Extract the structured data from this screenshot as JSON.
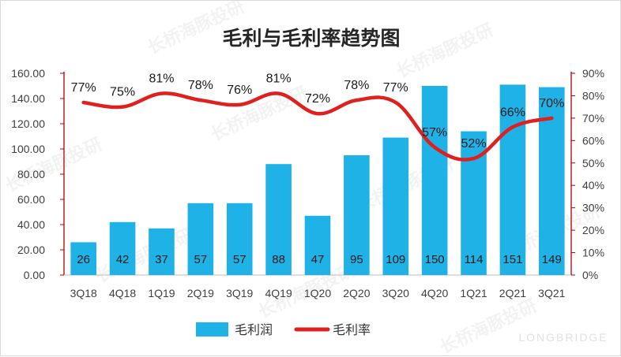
{
  "chart_data": {
    "type": "bar",
    "title": "毛利与毛利率趋势图",
    "categories": [
      "3Q18",
      "4Q18",
      "1Q19",
      "2Q19",
      "3Q19",
      "4Q19",
      "1Q20",
      "2Q20",
      "3Q20",
      "4Q20",
      "1Q21",
      "2Q21",
      "3Q21"
    ],
    "series": [
      {
        "name": "毛利润",
        "type": "bar",
        "axis": "left",
        "color": "#1fb2e6",
        "values": [
          26,
          42,
          37,
          57,
          57,
          88,
          47,
          95,
          109,
          150,
          114,
          151,
          149
        ],
        "labels": [
          "26",
          "42",
          "37",
          "57",
          "57",
          "88",
          "47",
          "95",
          "109",
          "150",
          "114",
          "151",
          "149"
        ]
      },
      {
        "name": "毛利率",
        "type": "line",
        "axis": "right",
        "color": "#e01f1f",
        "values": [
          77,
          75,
          81,
          78,
          76,
          81,
          72,
          78,
          77,
          57,
          52,
          66,
          70
        ],
        "labels": [
          "77%",
          "75%",
          "81%",
          "78%",
          "76%",
          "81%",
          "72%",
          "78%",
          "77%",
          "57%",
          "52%",
          "66%",
          "70%"
        ]
      }
    ],
    "y_left": {
      "ylim": [
        0,
        160
      ],
      "ticks": [
        "0.00",
        "20.00",
        "40.00",
        "60.00",
        "80.00",
        "100.00",
        "120.00",
        "140.00",
        "160.00"
      ]
    },
    "y_right": {
      "ylim": [
        0,
        90
      ],
      "ticks": [
        "0%",
        "10%",
        "20%",
        "30%",
        "40%",
        "50%",
        "60%",
        "70%",
        "80%",
        "90%"
      ]
    },
    "grid": false,
    "legend_position": "bottom",
    "xlabel": "",
    "ylabel": ""
  },
  "watermark": {
    "text": "长桥海豚投研",
    "brand": "LONGBRIDGE"
  }
}
